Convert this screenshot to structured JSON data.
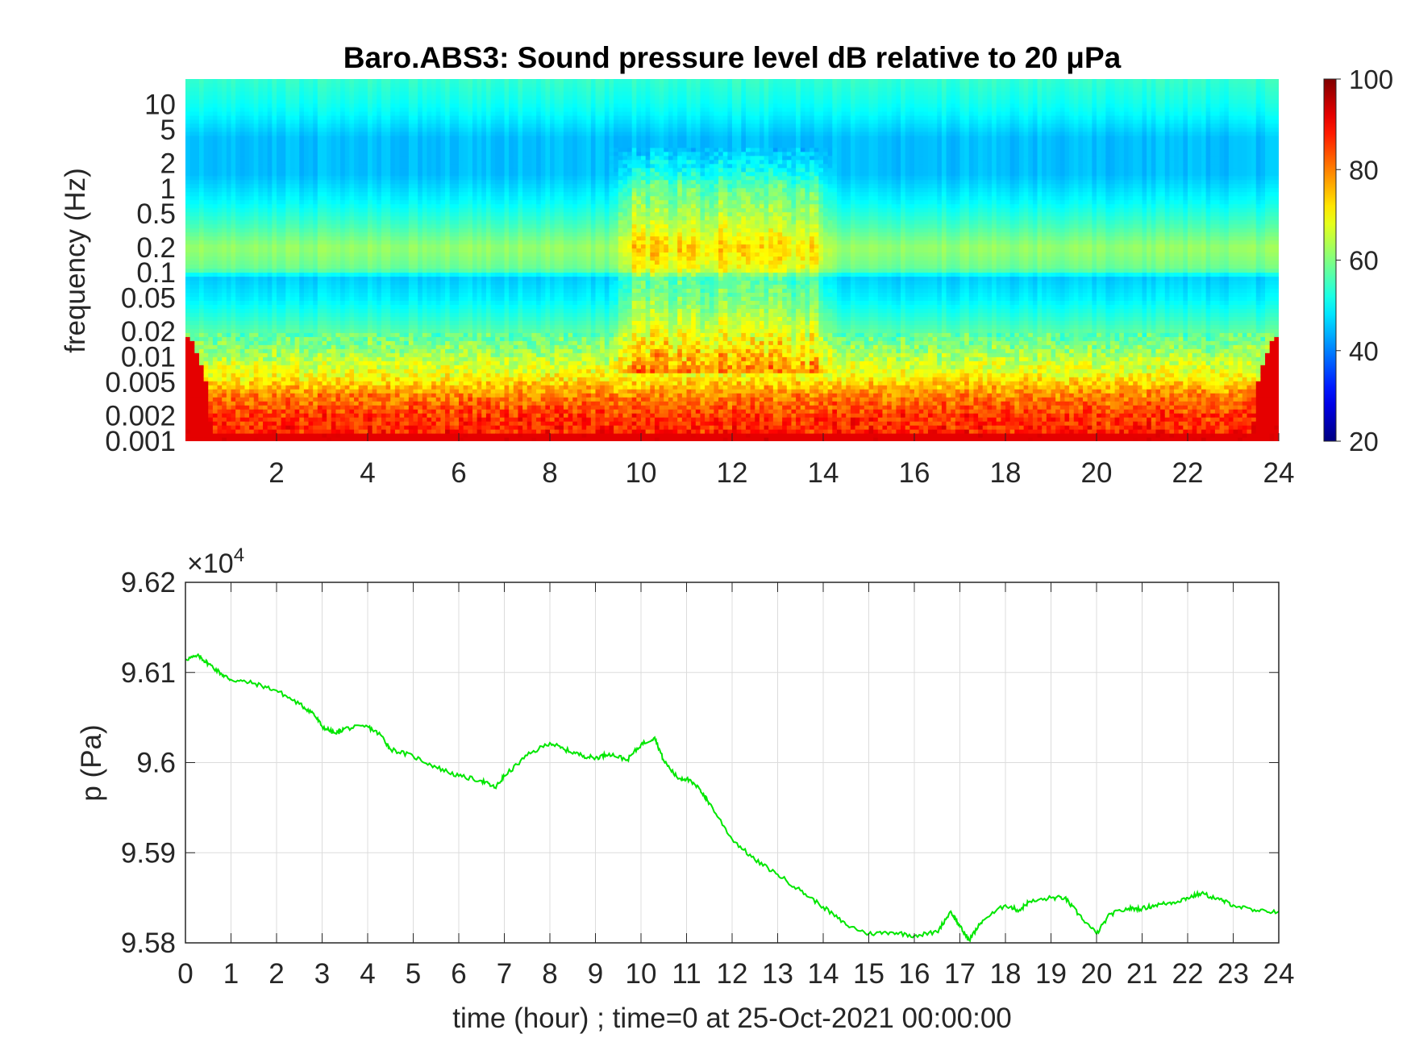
{
  "chart_data": [
    {
      "type": "heatmap",
      "title": "Baro.ABS3: Sound pressure level dB relative to 20 μPa",
      "ylabel": "frequency (Hz)",
      "xlabel": "",
      "y_scale": "log",
      "xlim": [
        0,
        24
      ],
      "ylim": [
        0.001,
        20
      ],
      "x_ticks": [
        2,
        4,
        6,
        8,
        10,
        12,
        14,
        16,
        18,
        20,
        22,
        24
      ],
      "y_ticks": [
        0.001,
        0.002,
        0.005,
        0.01,
        0.02,
        0.05,
        0.1,
        0.2,
        0.5,
        1,
        2,
        5,
        10
      ],
      "y_tick_labels": [
        "0.001",
        "0.002",
        "0.005",
        "0.01",
        "0.02",
        "0.05",
        "0.1",
        "0.2",
        "0.5",
        "1",
        "2",
        "5",
        "10"
      ],
      "colorbar": {
        "min": 20,
        "max": 100,
        "ticks": [
          20,
          40,
          60,
          80,
          100
        ],
        "colormap": "jet"
      },
      "level_profile_db": [
        {
          "f": 0.001,
          "db": 88
        },
        {
          "f": 0.002,
          "db": 86
        },
        {
          "f": 0.0035,
          "db": 80
        },
        {
          "f": 0.006,
          "db": 70
        },
        {
          "f": 0.012,
          "db": 62
        },
        {
          "f": 0.025,
          "db": 55
        },
        {
          "f": 0.05,
          "db": 49
        },
        {
          "f": 0.09,
          "db": 46
        },
        {
          "f": 0.11,
          "db": 58
        },
        {
          "f": 0.2,
          "db": 62
        },
        {
          "f": 0.35,
          "db": 56
        },
        {
          "f": 0.7,
          "db": 50
        },
        {
          "f": 1.5,
          "db": 45
        },
        {
          "f": 4,
          "db": 45
        },
        {
          "f": 8,
          "db": 50
        },
        {
          "f": 12,
          "db": 52
        },
        {
          "f": 20,
          "db": 54
        }
      ],
      "active_period_hours": [
        9.3,
        14.3
      ],
      "active_period_boost_db": 14,
      "grid": false
    },
    {
      "type": "line",
      "title": "",
      "xlabel": "time (hour) ; time=0 at 25-Oct-2021 00:00:00",
      "ylabel": "p (Pa)",
      "exponent_label": "×10",
      "exponent_power": "4",
      "xlim": [
        0,
        24
      ],
      "ylim": [
        95800,
        96200
      ],
      "x_ticks": [
        0,
        1,
        2,
        3,
        4,
        5,
        6,
        7,
        8,
        9,
        10,
        11,
        12,
        13,
        14,
        15,
        16,
        17,
        18,
        19,
        20,
        21,
        22,
        23,
        24
      ],
      "y_ticks": [
        95800,
        95900,
        96000,
        96100,
        96200
      ],
      "y_tick_labels": [
        "9.58",
        "9.59",
        "9.6",
        "9.61",
        "9.62"
      ],
      "grid": true,
      "series_color": "#00e600",
      "series": [
        {
          "x": [
            0,
            0.3,
            0.5,
            0.8,
            1,
            1.5,
            2,
            2.5,
            2.8,
            3,
            3.3,
            3.5,
            4,
            4.3,
            4.5,
            5,
            5.5,
            6,
            6.5,
            6.8,
            7,
            7.5,
            8,
            8.3,
            8.7,
            9,
            9.3,
            9.7,
            10,
            10.3,
            10.5,
            10.8,
            11,
            11.3,
            11.5,
            12,
            12.5,
            13,
            13.5,
            14,
            14.5,
            15,
            15.5,
            16,
            16.5,
            16.8,
            17,
            17.2,
            17.5,
            18,
            18.3,
            18.5,
            19,
            19.3,
            19.6,
            20,
            20.3,
            20.7,
            21,
            21.3,
            21.7,
            22,
            22.3,
            22.7,
            23,
            23.5,
            24
          ],
          "y": [
            96115,
            96118,
            96110,
            96098,
            96092,
            96088,
            96080,
            96065,
            96055,
            96040,
            96032,
            96038,
            96040,
            96030,
            96015,
            96007,
            95995,
            95985,
            95980,
            95972,
            95985,
            96008,
            96022,
            96015,
            96008,
            96005,
            96010,
            96003,
            96020,
            96028,
            96002,
            95983,
            95982,
            95970,
            95955,
            95915,
            95892,
            95876,
            95858,
            95840,
            95820,
            95810,
            95812,
            95808,
            95812,
            95835,
            95818,
            95803,
            95825,
            95842,
            95836,
            95845,
            95850,
            95850,
            95832,
            95810,
            95832,
            95838,
            95838,
            95842,
            95845,
            95850,
            95855,
            95848,
            95842,
            95835,
            95835
          ]
        }
      ]
    }
  ]
}
